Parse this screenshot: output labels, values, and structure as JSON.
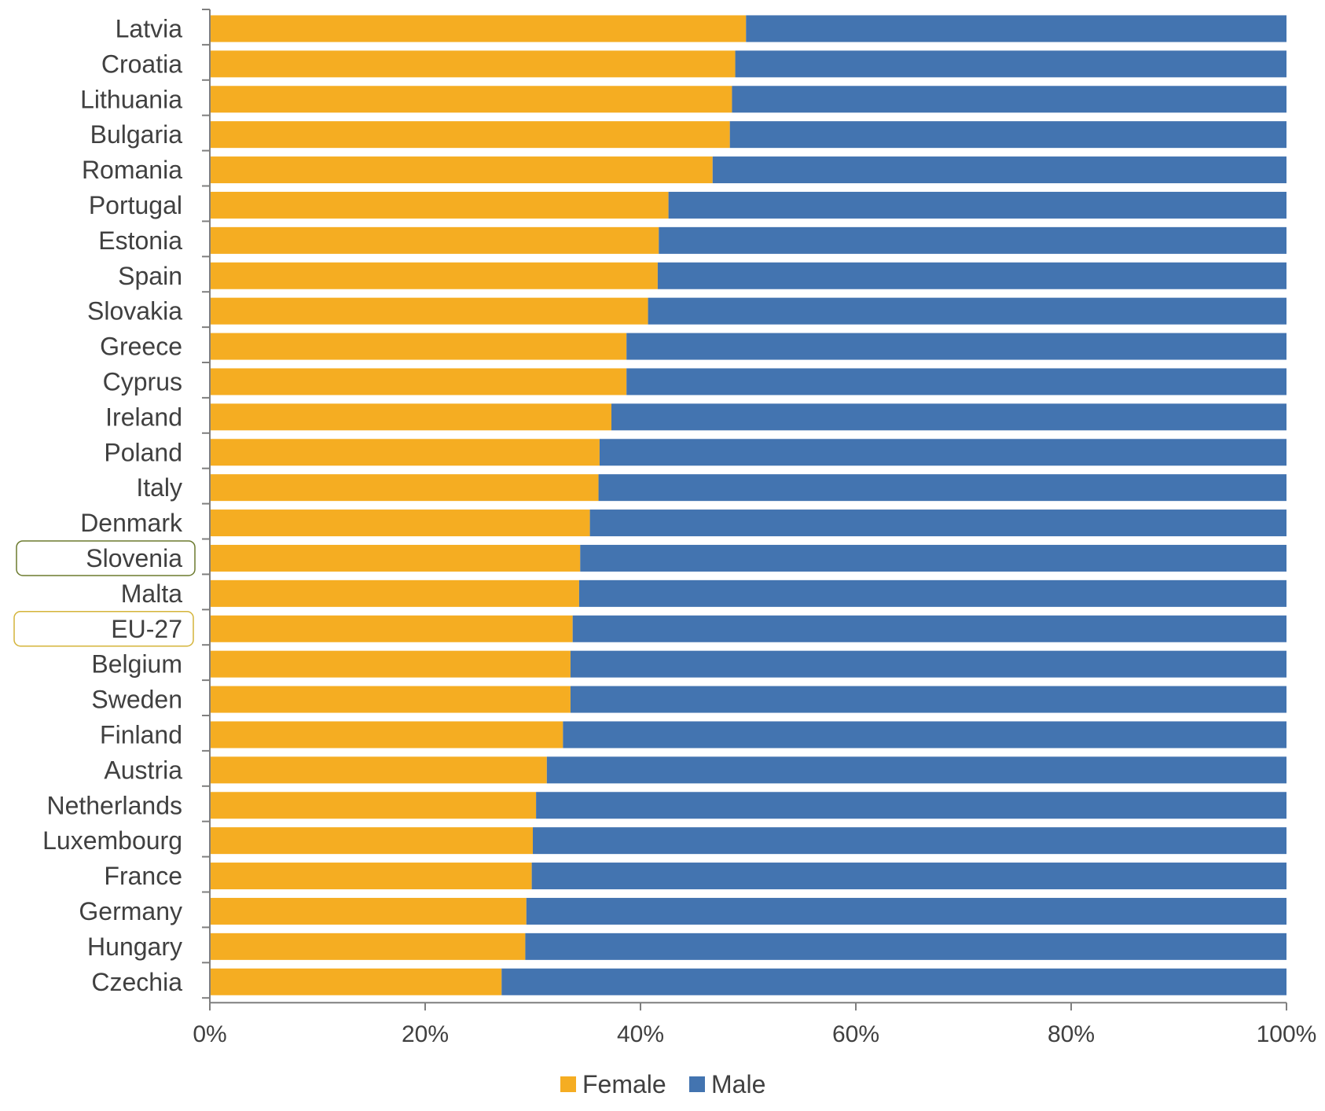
{
  "chart_data": {
    "type": "bar",
    "orientation": "horizontal",
    "stacked": "percent",
    "title": "",
    "xlabel": "",
    "ylabel": "",
    "xlim": [
      0,
      100
    ],
    "x_ticks": [
      "0%",
      "20%",
      "40%",
      "60%",
      "80%",
      "100%"
    ],
    "grid": false,
    "legend_position": "bottom",
    "highlighted_categories": [
      "Slovenia",
      "EU-27"
    ],
    "colors": {
      "Female": "#F5AD22",
      "Male": "#4374B0",
      "highlight_border": "#6B7A2E",
      "highlight_border_alt": "#D4B43A",
      "axis": "#7F7F7F",
      "text": "#404040"
    },
    "categories": [
      "Latvia",
      "Croatia",
      "Lithuania",
      "Bulgaria",
      "Romania",
      "Portugal",
      "Estonia",
      "Spain",
      "Slovakia",
      "Greece",
      "Cyprus",
      "Ireland",
      "Poland",
      "Italy",
      "Denmark",
      "Slovenia",
      "Malta",
      "EU-27",
      "Belgium",
      "Sweden",
      "Finland",
      "Austria",
      "Netherlands",
      "Luxembourg",
      "France",
      "Germany",
      "Hungary",
      "Czechia"
    ],
    "series": [
      {
        "name": "Female",
        "values": [
          49.8,
          48.8,
          48.5,
          48.3,
          46.7,
          42.6,
          41.7,
          41.6,
          40.7,
          38.7,
          38.7,
          37.3,
          36.2,
          36.1,
          35.3,
          34.4,
          34.3,
          33.7,
          33.5,
          33.5,
          32.8,
          31.3,
          30.3,
          30.0,
          29.9,
          29.4,
          29.3,
          27.1
        ]
      },
      {
        "name": "Male",
        "values": [
          50.2,
          51.2,
          51.5,
          51.7,
          53.3,
          57.4,
          58.3,
          58.4,
          59.3,
          61.3,
          61.3,
          62.7,
          63.8,
          63.9,
          64.7,
          65.6,
          65.7,
          66.3,
          66.5,
          66.5,
          67.2,
          68.7,
          69.7,
          70.0,
          70.1,
          70.6,
          70.7,
          72.9
        ]
      }
    ]
  }
}
